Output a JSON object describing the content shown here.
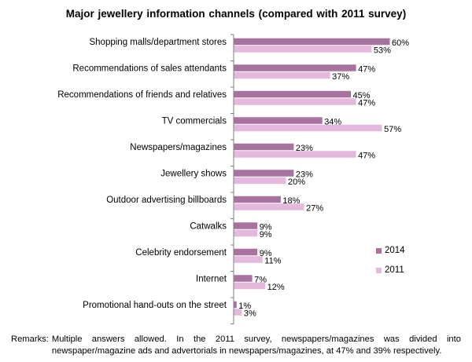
{
  "chart_data": {
    "type": "bar",
    "orientation": "horizontal",
    "title": "Major jewellery information channels (compared with 2011 survey)",
    "categories": [
      "Shopping malls/department stores",
      "Recommendations of sales attendants",
      "Recommendations of friends and relatives",
      "TV commercials",
      "Newspapers/magazines",
      "Jewellery shows",
      "Outdoor advertising billboards",
      "Catwalks",
      "Celebrity endorsement",
      "Internet",
      "Promotional hand-outs on the street"
    ],
    "series": [
      {
        "name": "2014",
        "values": [
          60,
          47,
          45,
          34,
          23,
          23,
          18,
          9,
          9,
          7,
          1
        ],
        "color": "#a7729f"
      },
      {
        "name": "2011",
        "values": [
          53,
          37,
          47,
          57,
          47,
          20,
          27,
          9,
          11,
          12,
          3
        ],
        "color": "#e4b9db"
      }
    ],
    "value_suffix": "%",
    "xlim": [
      0,
      60
    ],
    "grid": false,
    "legend_position": "right"
  },
  "remarks": {
    "label": "Remarks:",
    "text": "Multiple answers allowed. In the 2011 survey, newspapers/magazines was divided into newspaper/magazine ads and advertorials in newspapers/magazines, at 47% and 39% respectively."
  }
}
